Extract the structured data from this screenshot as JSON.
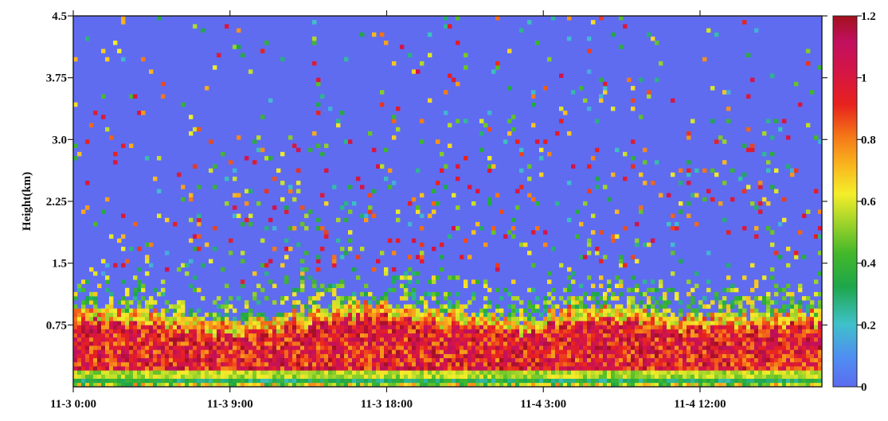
{
  "chart_data": {
    "type": "heatmap",
    "title": "",
    "xlabel": "",
    "ylabel": "Height(km)",
    "x_tick_labels": [
      "11-3 0:00",
      "11-3 9:00",
      "11-3 18:00",
      "11-4 3:00",
      "11-4 12:00"
    ],
    "x_tick_values_hours": [
      0,
      9,
      18,
      27,
      36
    ],
    "x_range_hours": [
      0,
      43
    ],
    "y_tick_labels": [
      "0.75",
      "1.5",
      "2.25",
      "3.0",
      "3.75",
      "4.5"
    ],
    "y_tick_values": [
      0.75,
      1.5,
      2.25,
      3.0,
      3.75,
      4.5
    ],
    "ylim": [
      0,
      4.5
    ],
    "colorbar": {
      "range": [
        0,
        1.2
      ],
      "tick_labels": [
        "0",
        "0.2",
        "0.4",
        "0.6",
        "0.8",
        "1",
        "1.2"
      ],
      "tick_values": [
        0,
        0.2,
        0.4,
        0.6,
        0.8,
        1.0,
        1.2
      ]
    },
    "background_value": 0,
    "approx_layer": {
      "description": "dense high-value aerosol layer near the surface",
      "top_height_km_by_hour": [
        [
          0,
          0.95
        ],
        [
          2,
          0.95
        ],
        [
          4,
          0.9
        ],
        [
          6,
          0.85
        ],
        [
          8,
          0.8
        ],
        [
          10,
          0.8
        ],
        [
          12,
          0.85
        ],
        [
          14,
          0.95
        ],
        [
          16,
          1.0
        ],
        [
          18,
          1.0
        ],
        [
          20,
          0.95
        ],
        [
          22,
          0.9
        ],
        [
          24,
          0.85
        ],
        [
          26,
          0.8
        ],
        [
          28,
          0.9
        ],
        [
          30,
          1.0
        ],
        [
          32,
          0.95
        ],
        [
          34,
          0.9
        ],
        [
          36,
          0.85
        ],
        [
          38,
          0.85
        ],
        [
          40,
          0.9
        ],
        [
          42,
          0.9
        ],
        [
          43,
          0.9
        ]
      ],
      "core_value": 1.0,
      "near_surface_value": 0.3
    }
  }
}
